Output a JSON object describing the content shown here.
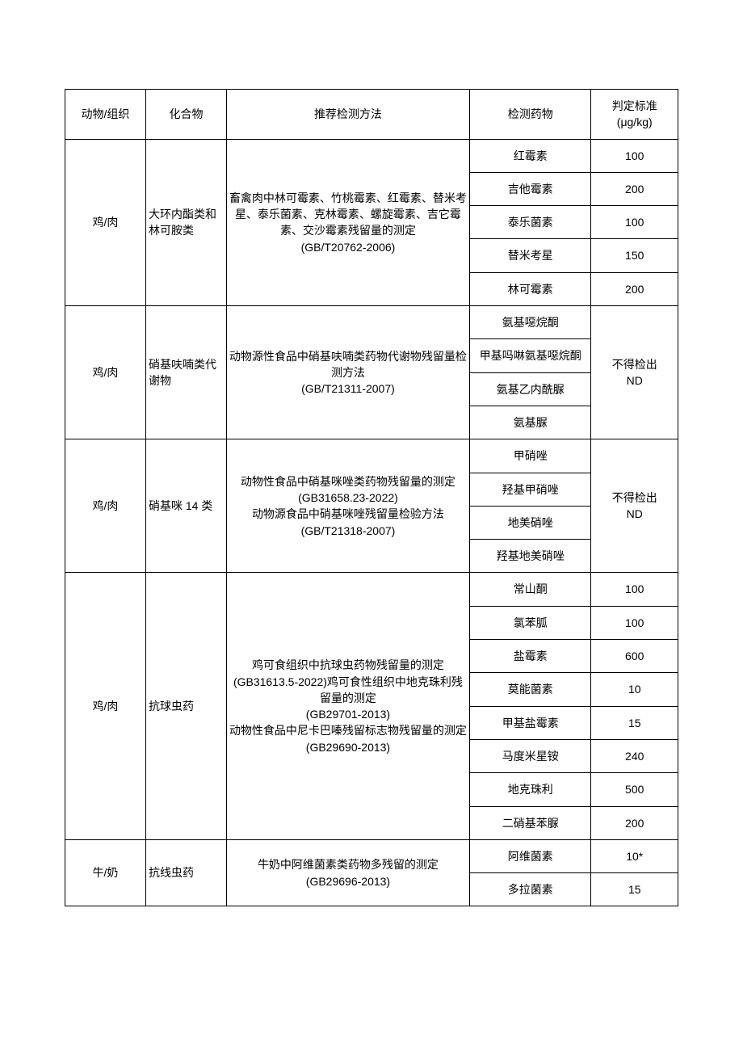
{
  "headers": {
    "animal": "动物/组织",
    "compound": "化合物",
    "method": "推荐检测方法",
    "drug": "检测药物",
    "criteria": "判定标准\n(μg/kg)"
  },
  "groups": [
    {
      "animal": "鸡/肉",
      "compound": "大环内酯类和林可胺类",
      "method": "畜禽肉中林可霉素、竹桃霉素、红霉素、替米考星、泰乐菌素、克林霉素、螺旋霉素、吉它霉素、交沙霉素残留量的测定\n(GB/T20762-2006)",
      "rows": [
        {
          "drug": "红霉素",
          "criteria": "100"
        },
        {
          "drug": "吉他霉素",
          "criteria": "200"
        },
        {
          "drug": "泰乐菌素",
          "criteria": "100"
        },
        {
          "drug": "替米考星",
          "criteria": "150"
        },
        {
          "drug": "林可霉素",
          "criteria": "200"
        }
      ]
    },
    {
      "animal": "鸡/肉",
      "compound": "硝基呋喃类代谢物",
      "method": "动物源性食品中硝基呋喃类药物代谢物残留量检测方法\n(GB/T21311-2007)",
      "criteria": "不得检出\nND",
      "rows": [
        {
          "drug": "氨基噁烷酮"
        },
        {
          "drug": "甲基吗啉氨基噁烷酮"
        },
        {
          "drug": "氨基乙内酰脲"
        },
        {
          "drug": "氨基脲"
        }
      ]
    },
    {
      "animal": "鸡/肉",
      "compound": "硝基咪 14 类",
      "method": "动物性食品中硝基咪唑类药物残留量的测定\n(GB31658.23-2022)\n动物源食品中硝基咪唑残留量检验方法\n(GB/T21318-2007)",
      "criteria": "不得检出\nND",
      "rows": [
        {
          "drug": "甲硝唑"
        },
        {
          "drug": "羟基甲硝唑"
        },
        {
          "drug": "地美硝唑"
        },
        {
          "drug": "羟基地美硝唑"
        }
      ]
    },
    {
      "animal": "鸡/肉",
      "compound": "抗球虫药",
      "method": "鸡可食组织中抗球虫药物残留量的测定(GB31613.5-2022)鸡可食性组织中地克珠利残留量的测定\n(GB29701-2013)\n动物性食品中尼卡巴嗪残留标志物残留量的测定(GB29690-2013)",
      "rows": [
        {
          "drug": "常山酮",
          "criteria": "100"
        },
        {
          "drug": "氯苯胍",
          "criteria": "100"
        },
        {
          "drug": "盐霉素",
          "criteria": "600"
        },
        {
          "drug": "莫能菌素",
          "criteria": "10"
        },
        {
          "drug": "甲基盐霉素",
          "criteria": "15"
        },
        {
          "drug": "马度米星铵",
          "criteria": "240"
        },
        {
          "drug": "地克珠利",
          "criteria": "500"
        },
        {
          "drug": "二硝基苯脲",
          "criteria": "200"
        }
      ]
    },
    {
      "animal": "牛/奶",
      "compound": "抗线虫药",
      "method": "牛奶中阿维菌素类药物多残留的测定\n(GB29696-2013)",
      "rows": [
        {
          "drug": "阿维菌素",
          "criteria": "10*"
        },
        {
          "drug": "多拉菌素",
          "criteria": "15"
        }
      ]
    }
  ]
}
